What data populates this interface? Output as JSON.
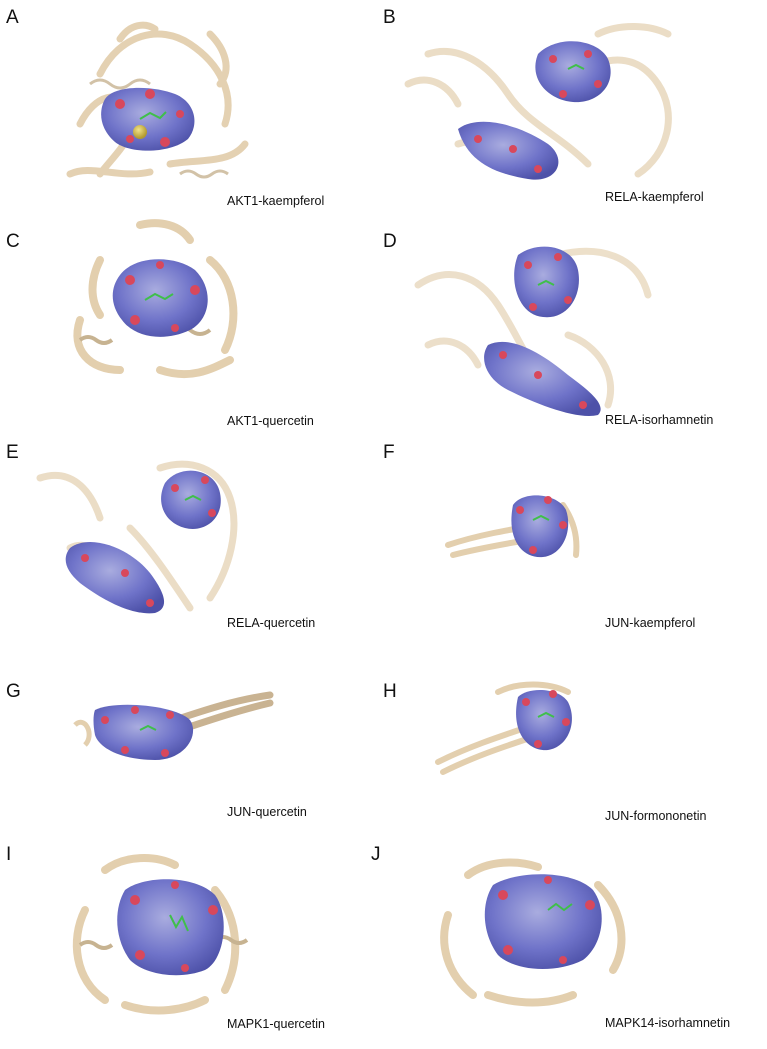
{
  "figure": {
    "panels": [
      {
        "letter": "A",
        "caption": "AKT1-kaempferol"
      },
      {
        "letter": "B",
        "caption": "RELA-kaempferol"
      },
      {
        "letter": "C",
        "caption": "AKT1-quercetin"
      },
      {
        "letter": "D",
        "caption": "RELA-isorhamnetin"
      },
      {
        "letter": "E",
        "caption": "RELA-quercetin"
      },
      {
        "letter": "F",
        "caption": "JUN-kaempferol"
      },
      {
        "letter": "G",
        "caption": "JUN-quercetin"
      },
      {
        "letter": "H",
        "caption": "JUN-formononetin"
      },
      {
        "letter": "I",
        "caption": "MAPK1-quercetin"
      },
      {
        "letter": "J",
        "caption": "MAPK14-isorhamnetin"
      }
    ]
  },
  "colors": {
    "ribbon": "#e3cfae",
    "ribbon_dark": "#b9a585",
    "surface": "#6f73c9",
    "surface_light": "#a9acdf",
    "oxygen": "#d8485c",
    "ligand": "#3fbf4a",
    "ion": "#c9b64a"
  }
}
